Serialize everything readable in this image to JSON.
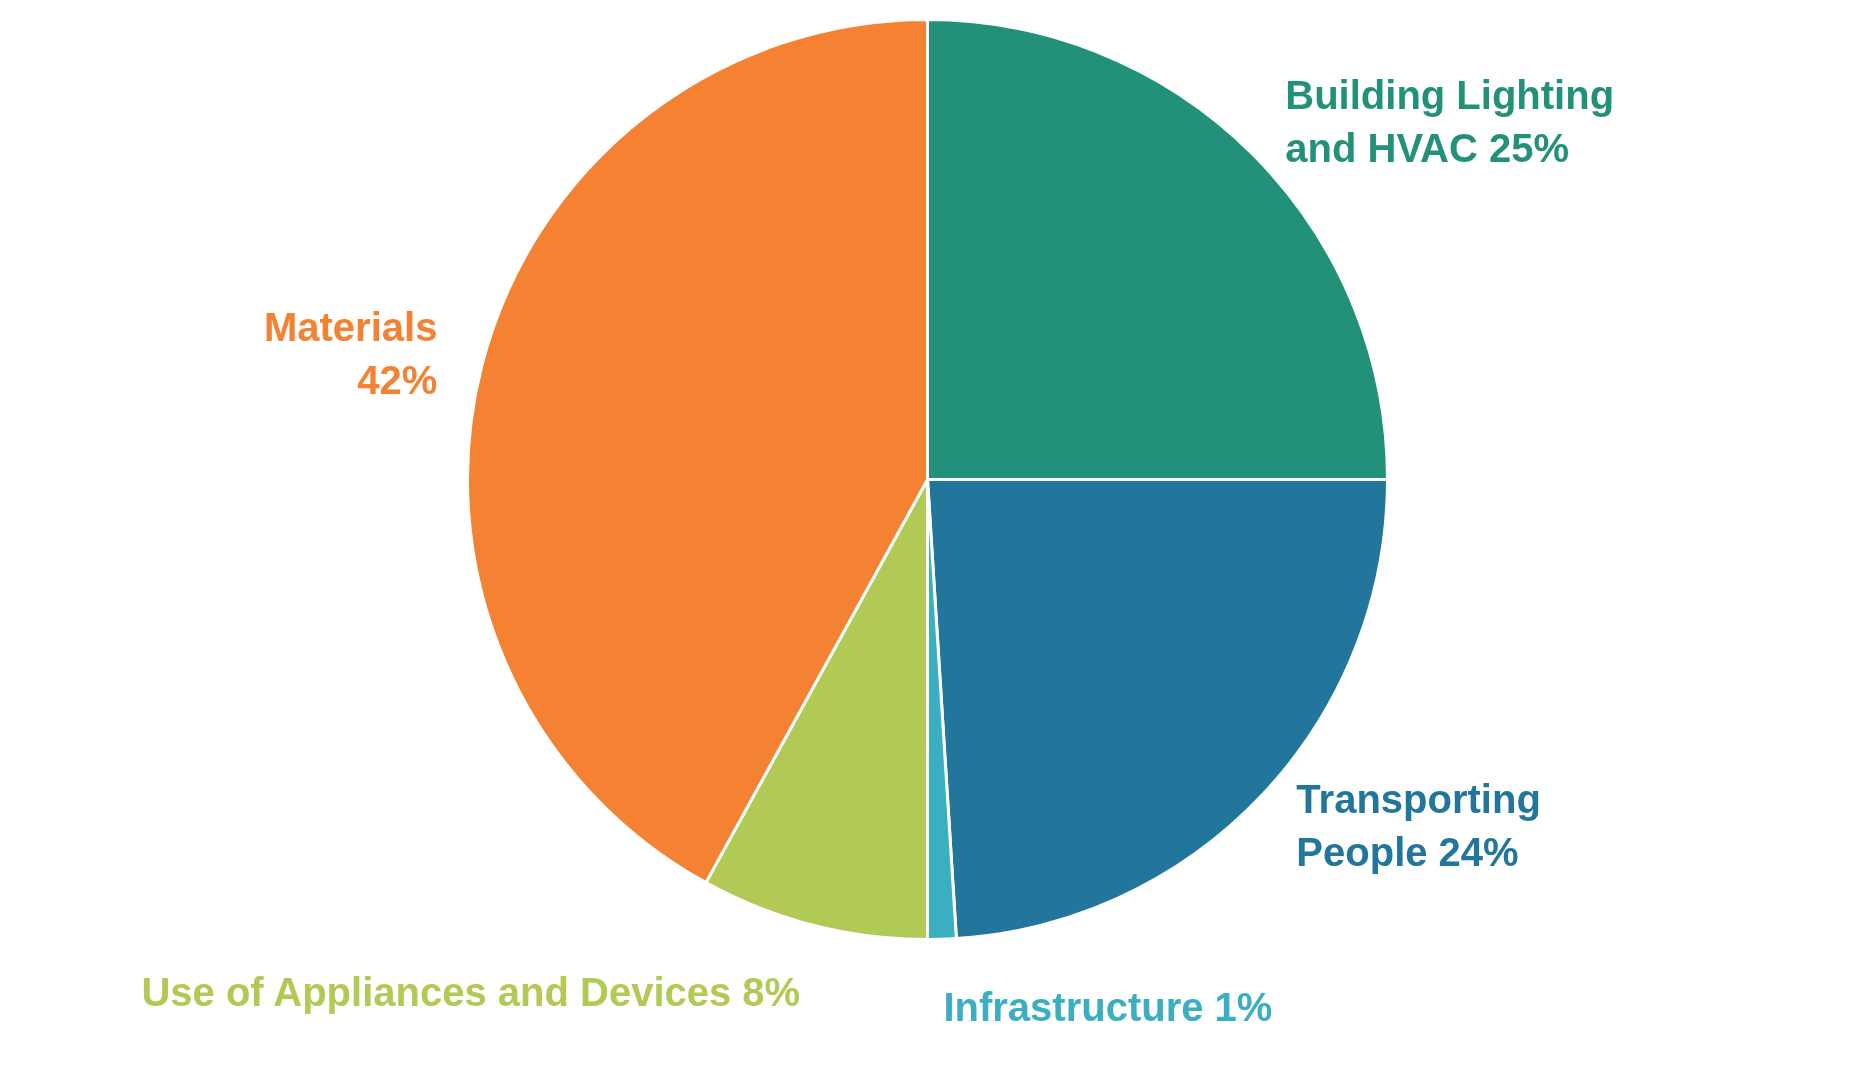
{
  "chart_data": {
    "type": "pie",
    "categories": [
      "Building Lighting and HVAC",
      "Transporting People",
      "Infrastructure",
      "Use of Appliances and Devices",
      "Materials"
    ],
    "values": [
      25,
      24,
      1,
      8,
      42
    ],
    "value_labels": [
      "25%",
      "24%",
      "1%",
      "8%",
      "42%"
    ],
    "colors": [
      "#23917a",
      "#23769b",
      "#3bafc1",
      "#b1c955",
      "#f58233"
    ]
  }
}
